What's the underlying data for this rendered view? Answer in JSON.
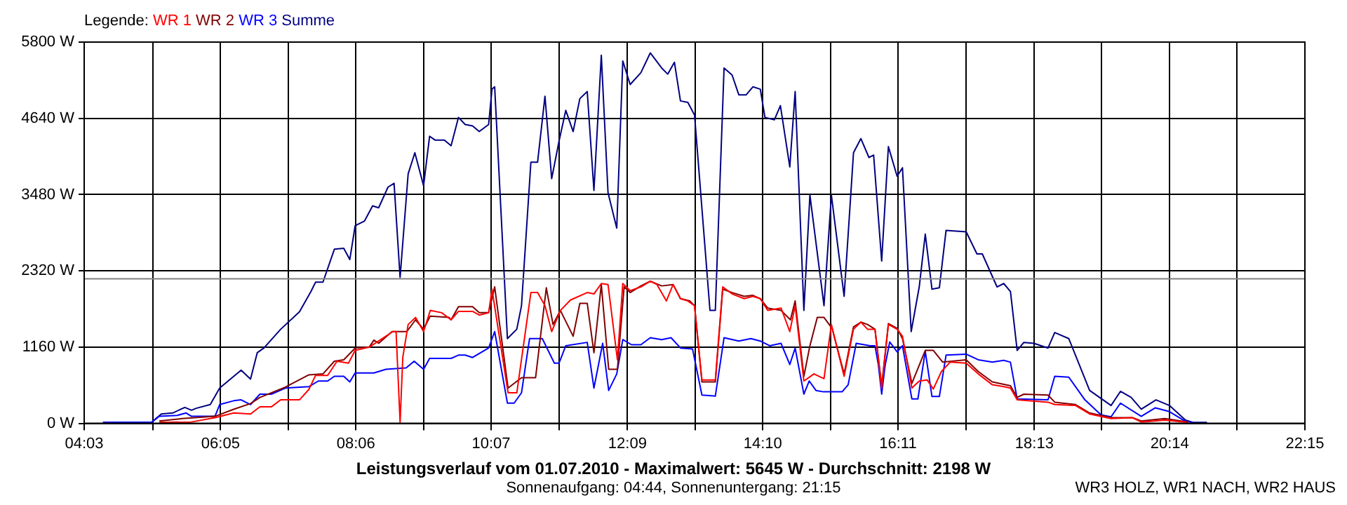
{
  "chart_data": {
    "type": "line",
    "title": "Leistungsverlauf vom 01.07.2010 - Maximalwert: 5645 W - Durchschnitt: 2198 W",
    "subtitle": "Sonnenaufgang: 04:44, Sonnenuntergang: 21:15",
    "legend_title": "Legende:",
    "annotations": [
      "WR3 HOLZ, WR1 NACH, WR2 HAUS"
    ],
    "legend": "top left",
    "grid": true,
    "marker": "none",
    "line_style": "solid",
    "xlim": [
      4.05,
      22.25
    ],
    "xticks": [
      {
        "value": 4.05,
        "label": "04:03"
      },
      {
        "value": 5.07,
        "label": null
      },
      {
        "value": 6.0833,
        "label": "06:05"
      },
      {
        "value": 7.09,
        "label": null
      },
      {
        "value": 8.1,
        "label": "08:06"
      },
      {
        "value": 9.11,
        "label": null
      },
      {
        "value": 10.1167,
        "label": "10:07"
      },
      {
        "value": 11.13,
        "label": null
      },
      {
        "value": 12.15,
        "label": "12:09"
      },
      {
        "value": 13.16,
        "label": null
      },
      {
        "value": 14.1667,
        "label": "14:10"
      },
      {
        "value": 15.18,
        "label": null
      },
      {
        "value": 16.1833,
        "label": "16:11"
      },
      {
        "value": 17.2,
        "label": null
      },
      {
        "value": 18.2167,
        "label": "18:13"
      },
      {
        "value": 19.22,
        "label": null
      },
      {
        "value": 20.2333,
        "label": "20:14"
      },
      {
        "value": 21.24,
        "label": null
      },
      {
        "value": 22.25,
        "label": "22:15"
      }
    ],
    "ylim": [
      0,
      5800
    ],
    "yticks": [
      {
        "value": 0,
        "label": "0 W"
      },
      {
        "value": 1160,
        "label": "1160 W"
      },
      {
        "value": 2320,
        "label": "2320 W"
      },
      {
        "value": 3480,
        "label": "3480 W"
      },
      {
        "value": 4640,
        "label": "4640 W"
      },
      {
        "value": 5800,
        "label": "5800 W"
      }
    ],
    "ref_lines": [
      {
        "axis": "y",
        "value": 2198,
        "color": "#808080"
      }
    ],
    "series": [
      {
        "name": "WR 1",
        "color": "#ff0000",
        "x": [
          5.17,
          5.65,
          6.0,
          6.28,
          6.53,
          6.67,
          6.84,
          6.98,
          7.26,
          7.4,
          7.5,
          7.68,
          7.82,
          7.99,
          8.09,
          8.3,
          8.44,
          8.65,
          8.7,
          8.76,
          8.8,
          8.88,
          8.99,
          9.11,
          9.21,
          9.38,
          9.52,
          9.63,
          9.84,
          9.94,
          10.08,
          10.13,
          10.37,
          10.5,
          10.71,
          10.81,
          10.92,
          11.02,
          11.15,
          11.3,
          11.55,
          11.65,
          11.76,
          11.86,
          12.0,
          12.08,
          12.19,
          12.35,
          12.49,
          12.59,
          12.73,
          12.83,
          12.94,
          13.05,
          13.15,
          13.26,
          13.46,
          13.57,
          13.71,
          13.89,
          14.02,
          14.13,
          14.24,
          14.44,
          14.57,
          14.65,
          14.78,
          14.93,
          15.08,
          15.19,
          15.38,
          15.52,
          15.63,
          15.73,
          15.84,
          15.94,
          16.04,
          16.17,
          16.25,
          16.39,
          16.5,
          16.62,
          16.71,
          16.83,
          16.96,
          17.2,
          17.38,
          17.59,
          17.76,
          17.86,
          17.96,
          18.42,
          18.52,
          18.83,
          19.04,
          19.36,
          19.68,
          19.81,
          20.16,
          20.51
        ],
        "values": [
          14,
          21,
          86,
          158,
          143,
          251,
          251,
          358,
          358,
          516,
          730,
          730,
          945,
          916,
          1110,
          1160,
          1253,
          1396,
          1396,
          14,
          1002,
          1504,
          1611,
          1396,
          1718,
          1683,
          1575,
          1704,
          1704,
          1647,
          1683,
          2041,
          465,
          465,
          1990,
          1990,
          1790,
          1396,
          1718,
          1876,
          1990,
          1969,
          2127,
          2112,
          967,
          2127,
          2019,
          2076,
          2162,
          2112,
          1862,
          2112,
          1897,
          1862,
          1790,
          659,
          659,
          2076,
          1969,
          1897,
          1933,
          1897,
          1718,
          1754,
          1396,
          1790,
          644,
          752,
          680,
          1504,
          716,
          1432,
          1540,
          1432,
          1432,
          537,
          1504,
          1432,
          1325,
          537,
          644,
          659,
          523,
          788,
          931,
          916,
          752,
          587,
          558,
          537,
          358,
          322,
          286,
          272,
          143,
          72,
          86,
          21,
          50,
          14
        ]
      },
      {
        "name": "WR 2",
        "color": "#800000",
        "x": [
          5.17,
          5.51,
          6.0,
          6.28,
          6.53,
          6.67,
          7.05,
          7.4,
          7.61,
          7.78,
          7.92,
          8.09,
          8.3,
          8.37,
          8.44,
          8.64,
          8.86,
          8.99,
          9.11,
          9.21,
          9.49,
          9.52,
          9.63,
          9.84,
          9.94,
          10.08,
          10.17,
          10.37,
          10.57,
          10.78,
          10.94,
          11.04,
          11.15,
          11.34,
          11.44,
          11.55,
          11.65,
          11.76,
          11.87,
          12.0,
          12.1,
          12.19,
          12.35,
          12.49,
          12.66,
          12.83,
          12.94,
          13.08,
          13.15,
          13.26,
          13.46,
          13.57,
          13.71,
          13.89,
          14.02,
          14.13,
          14.24,
          14.44,
          14.58,
          14.65,
          14.78,
          14.87,
          14.98,
          15.08,
          15.2,
          15.38,
          15.52,
          15.63,
          15.73,
          15.84,
          15.94,
          16.04,
          16.17,
          16.25,
          16.39,
          16.59,
          16.71,
          16.85,
          17.2,
          17.38,
          17.59,
          17.86,
          17.96,
          18.06,
          18.42,
          18.52,
          18.83,
          19.04,
          19.36,
          19.68,
          19.81,
          20.16,
          20.51
        ],
        "values": [
          36,
          72,
          107,
          215,
          301,
          394,
          551,
          738,
          752,
          945,
          967,
          1146,
          1160,
          1267,
          1217,
          1396,
          1396,
          1575,
          1432,
          1632,
          1611,
          1575,
          1776,
          1776,
          1683,
          1683,
          2076,
          537,
          695,
          695,
          2062,
          1504,
          1718,
          1325,
          1826,
          1826,
          1074,
          2112,
          823,
          823,
          2076,
          1990,
          2091,
          2162,
          2091,
          2112,
          1897,
          1862,
          1790,
          630,
          630,
          2041,
          1990,
          1933,
          1947,
          1897,
          1754,
          1718,
          1575,
          1862,
          716,
          1181,
          1611,
          1611,
          1446,
          752,
          1468,
          1540,
          1504,
          1432,
          573,
          1518,
          1446,
          1289,
          609,
          1110,
          1110,
          931,
          967,
          788,
          630,
          573,
          394,
          444,
          430,
          322,
          286,
          158,
          86,
          86,
          36,
          72,
          21
        ]
      },
      {
        "name": "WR 3",
        "color": "#0000ff",
        "x": [
          4.33,
          5.06,
          5.17,
          5.44,
          5.57,
          5.65,
          6.0,
          6.07,
          6.28,
          6.39,
          6.53,
          6.67,
          6.84,
          7.05,
          7.4,
          7.54,
          7.68,
          7.78,
          7.92,
          8.01,
          8.09,
          8.37,
          8.55,
          8.85,
          8.97,
          9.11,
          9.2,
          9.52,
          9.63,
          9.73,
          9.84,
          10.08,
          10.17,
          10.36,
          10.46,
          10.57,
          10.69,
          10.88,
          11.06,
          11.13,
          11.23,
          11.55,
          11.65,
          11.78,
          11.87,
          11.99,
          12.08,
          12.21,
          12.35,
          12.49,
          12.66,
          12.8,
          12.94,
          13.12,
          13.26,
          13.46,
          13.59,
          13.81,
          13.99,
          14.13,
          14.27,
          14.44,
          14.57,
          14.65,
          14.78,
          14.86,
          14.96,
          15.07,
          15.35,
          15.44,
          15.56,
          15.77,
          15.84,
          15.89,
          15.94,
          15.99,
          16.06,
          16.17,
          16.25,
          16.39,
          16.48,
          16.59,
          16.69,
          16.8,
          16.9,
          17.2,
          17.38,
          17.59,
          17.76,
          17.86,
          17.96,
          18.42,
          18.52,
          18.73,
          18.97,
          19.21,
          19.36,
          19.5,
          19.81,
          20.02,
          20.23,
          20.47,
          20.58
        ],
        "values": [
          14,
          21,
          107,
          122,
          158,
          107,
          107,
          286,
          344,
          358,
          286,
          444,
          444,
          537,
          558,
          644,
          644,
          716,
          716,
          630,
          766,
          766,
          823,
          845,
          945,
          823,
          988,
          988,
          1038,
          1038,
          1002,
          1146,
          1396,
          308,
          308,
          465,
          1289,
          1289,
          916,
          916,
          1181,
          1232,
          537,
          1217,
          501,
          752,
          1274,
          1196,
          1196,
          1303,
          1274,
          1303,
          1146,
          1131,
          430,
          415,
          1303,
          1253,
          1289,
          1253,
          1181,
          1217,
          895,
          1146,
          444,
          644,
          501,
          480,
          480,
          587,
          1217,
          1181,
          1181,
          895,
          444,
          873,
          1239,
          1088,
          1181,
          372,
          372,
          1096,
          408,
          408,
          1038,
          1053,
          967,
          931,
          959,
          931,
          372,
          358,
          716,
          702,
          358,
          129,
          100,
          308,
          107,
          236,
          179,
          29,
          14
        ]
      },
      {
        "name": "Summe",
        "color": "#000080",
        "x": [
          4.33,
          5.06,
          5.2,
          5.37,
          5.55,
          5.65,
          5.72,
          5.93,
          6.07,
          6.39,
          6.53,
          6.63,
          6.73,
          6.98,
          7.26,
          7.43,
          7.5,
          7.61,
          7.78,
          7.92,
          8.01,
          8.09,
          8.23,
          8.35,
          8.44,
          8.58,
          8.67,
          8.76,
          8.88,
          8.98,
          9.11,
          9.2,
          9.28,
          9.42,
          9.52,
          9.63,
          9.73,
          9.84,
          9.94,
          10.08,
          10.13,
          10.17,
          10.36,
          10.5,
          10.57,
          10.71,
          10.81,
          10.92,
          11.02,
          11.13,
          11.23,
          11.34,
          11.44,
          11.55,
          11.65,
          11.76,
          11.86,
          11.99,
          12.08,
          12.19,
          12.35,
          12.49,
          12.66,
          12.75,
          12.85,
          12.94,
          13.05,
          13.15,
          13.38,
          13.46,
          13.59,
          13.71,
          13.81,
          13.92,
          14.02,
          14.13,
          14.2,
          14.34,
          14.43,
          14.57,
          14.65,
          14.78,
          14.87,
          15.08,
          15.19,
          15.38,
          15.52,
          15.63,
          15.75,
          15.82,
          15.94,
          16.04,
          16.17,
          16.25,
          16.38,
          16.5,
          16.59,
          16.69,
          16.8,
          16.9,
          17.2,
          17.36,
          17.44,
          17.66,
          17.76,
          17.86,
          17.96,
          18.06,
          18.21,
          18.42,
          18.52,
          18.73,
          19.04,
          19.36,
          19.5,
          19.66,
          19.81,
          20.03,
          20.23,
          20.47,
          20.58,
          20.79
        ],
        "values": [
          14,
          21,
          143,
          158,
          243,
          200,
          229,
          286,
          537,
          809,
          673,
          1074,
          1146,
          1432,
          1697,
          2005,
          2148,
          2148,
          2649,
          2664,
          2492,
          3007,
          3079,
          3308,
          3279,
          3594,
          3652,
          2220,
          3795,
          4117,
          3616,
          4368,
          4310,
          4310,
          4224,
          4654,
          4547,
          4525,
          4439,
          4547,
          5084,
          5119,
          1289,
          1432,
          1790,
          3974,
          3974,
          4976,
          3723,
          4296,
          4761,
          4439,
          4940,
          5048,
          3544,
          5599,
          3508,
          2971,
          5513,
          5155,
          5334,
          5635,
          5406,
          5313,
          5492,
          4905,
          4883,
          4690,
          1718,
          1718,
          5406,
          5298,
          4998,
          4998,
          5119,
          5084,
          4654,
          4618,
          4833,
          3902,
          5048,
          1718,
          3473,
          1790,
          3473,
          1933,
          4117,
          4332,
          4045,
          4081,
          2470,
          4210,
          3759,
          3888,
          1396,
          2076,
          2878,
          2041,
          2062,
          2936,
          2914,
          2578,
          2578,
          2076,
          2127,
          2005,
          1110,
          1232,
          1217,
          1146,
          1382,
          1289,
          501,
          272,
          487,
          394,
          215,
          358,
          272,
          50,
          14,
          14
        ]
      }
    ]
  }
}
